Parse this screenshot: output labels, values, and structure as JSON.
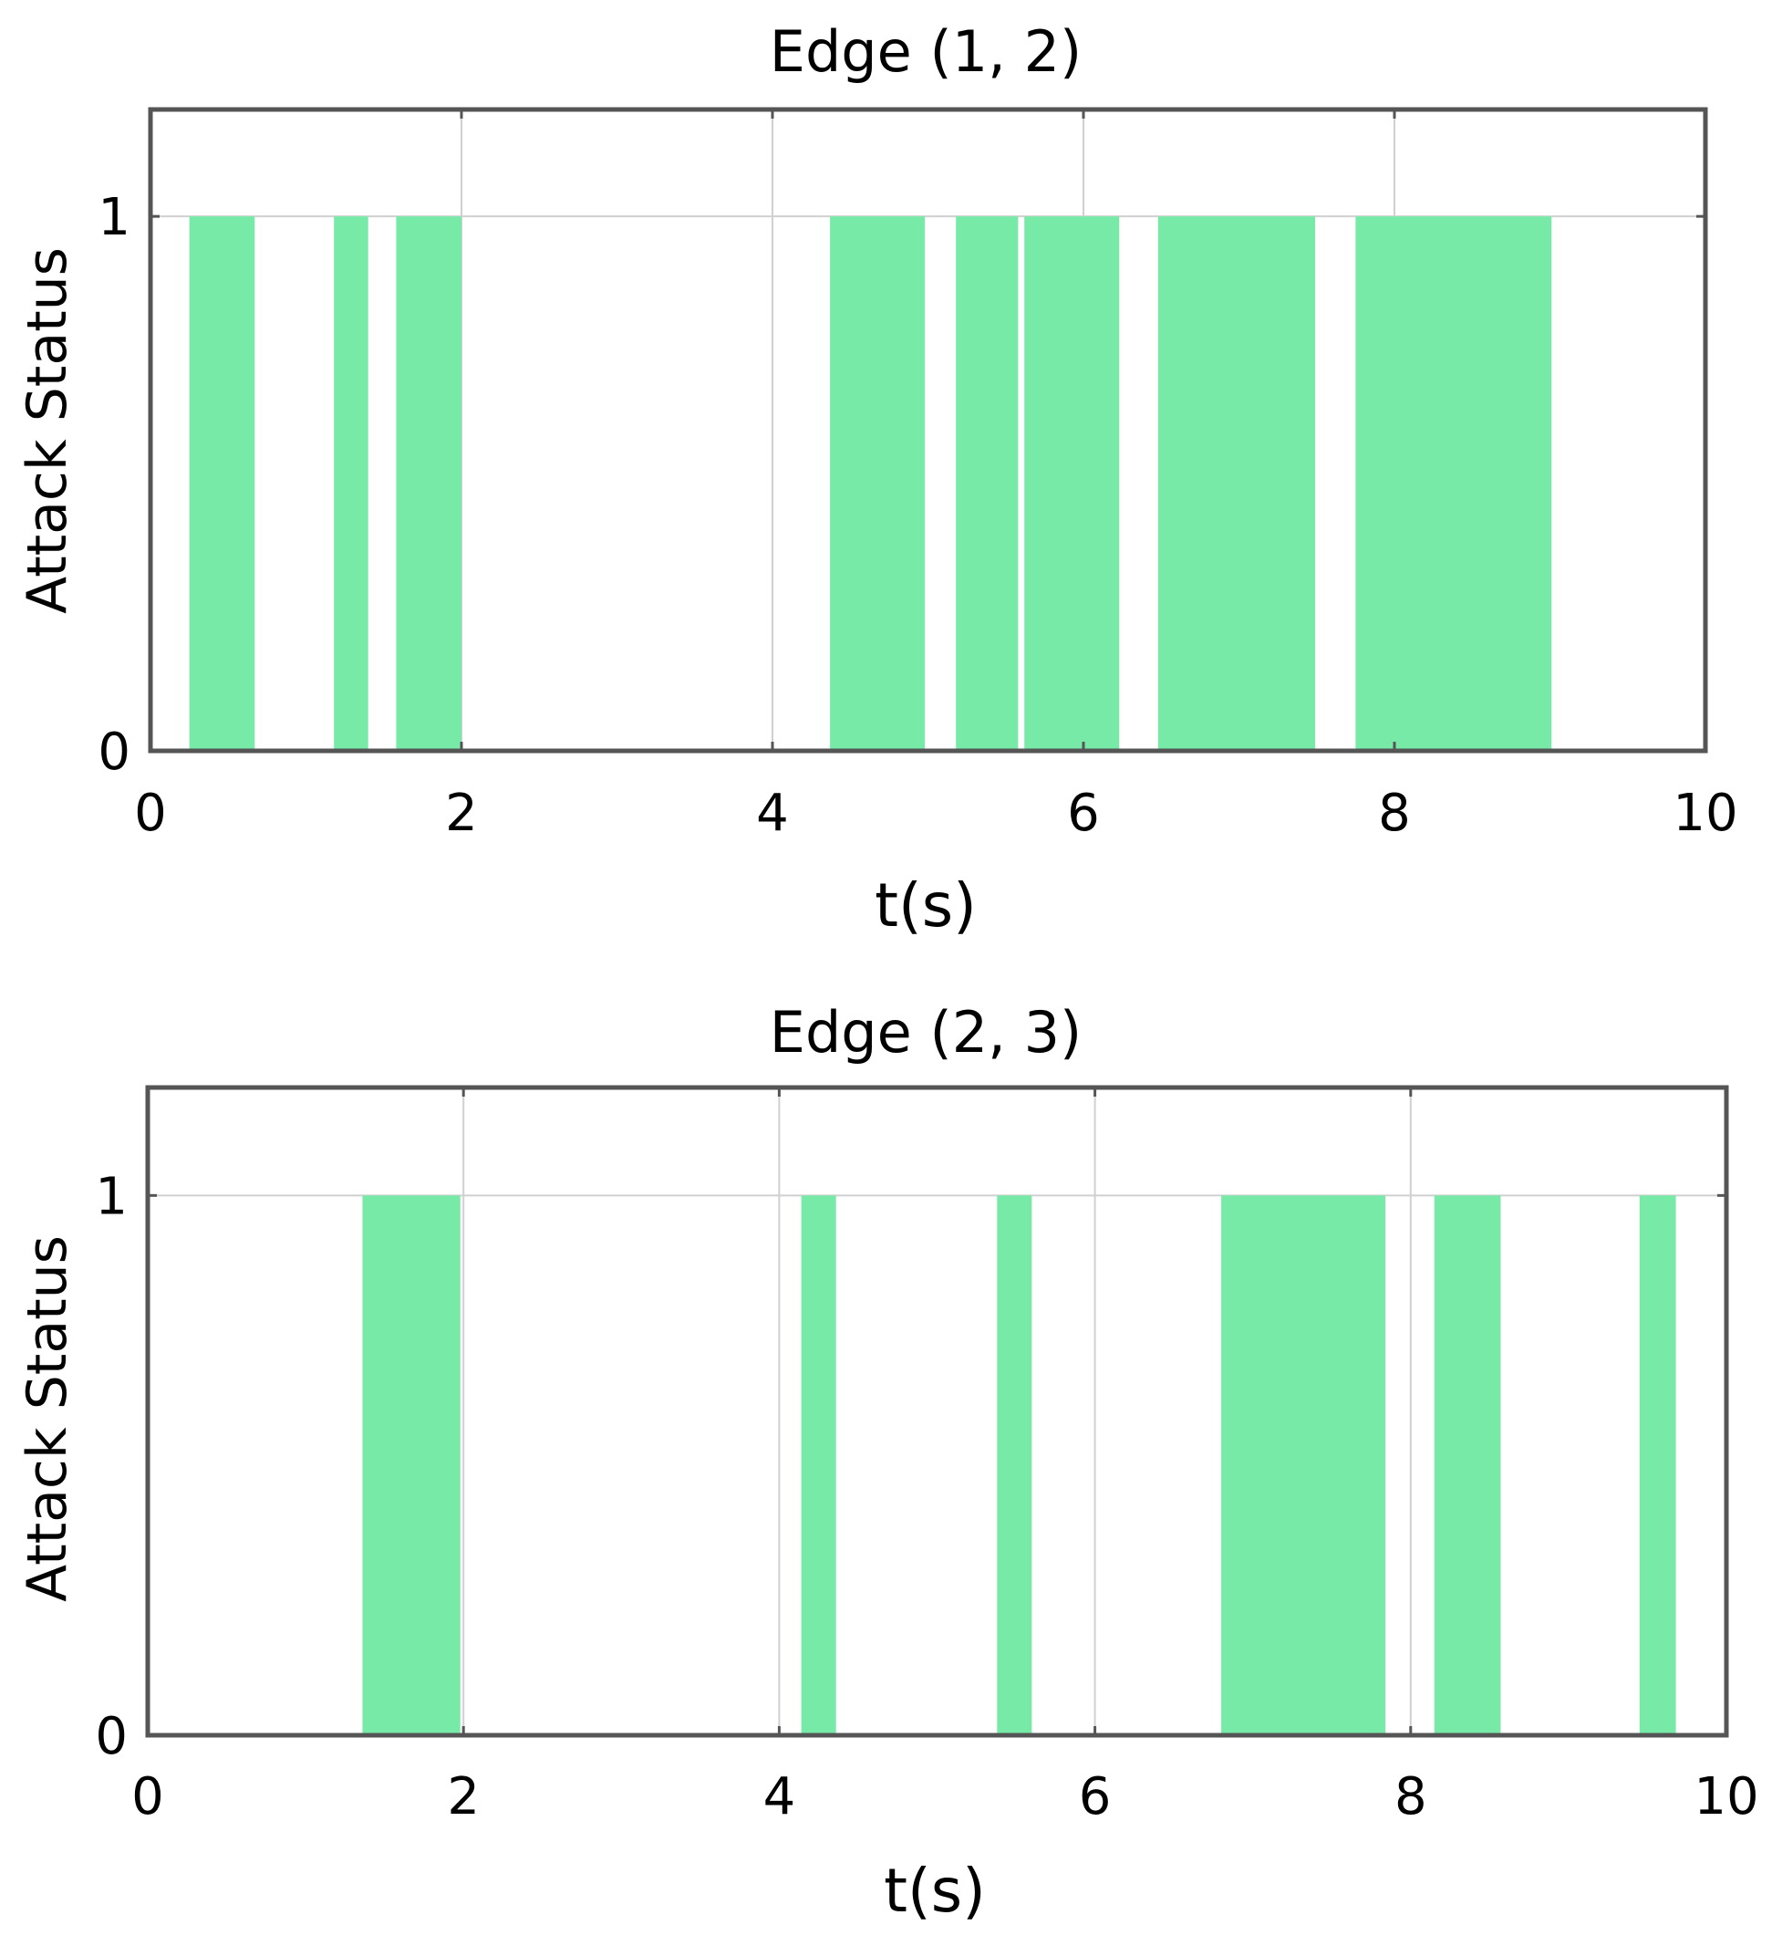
{
  "figure": {
    "bar_color": "#78EAA8",
    "grid_color": "#d0d0d0",
    "frame_color": "#555555"
  },
  "chart_data": [
    {
      "type": "bar",
      "subtype": "step-intervals",
      "title": "Edge (1, 2)",
      "xlabel": "t(s)",
      "ylabel": "Attack Status",
      "xlim": [
        0,
        10
      ],
      "ylim": [
        0,
        1.2
      ],
      "xticks": [
        0,
        2,
        4,
        6,
        8,
        10
      ],
      "yticks": [
        0,
        1
      ],
      "grid": true,
      "intervals": [
        {
          "start": 0.25,
          "end": 0.67,
          "value": 1
        },
        {
          "start": 1.18,
          "end": 1.4,
          "value": 1
        },
        {
          "start": 1.58,
          "end": 2.0,
          "value": 1
        },
        {
          "start": 4.37,
          "end": 4.98,
          "value": 1
        },
        {
          "start": 5.18,
          "end": 5.58,
          "value": 1
        },
        {
          "start": 5.62,
          "end": 6.23,
          "value": 1
        },
        {
          "start": 6.48,
          "end": 7.49,
          "value": 1
        },
        {
          "start": 7.75,
          "end": 9.01,
          "value": 1
        }
      ]
    },
    {
      "type": "bar",
      "subtype": "step-intervals",
      "title": "Edge (2, 3)",
      "xlabel": "t(s)",
      "ylabel": "Attack Status",
      "xlim": [
        0,
        10
      ],
      "ylim": [
        0,
        1.2
      ],
      "xticks": [
        0,
        2,
        4,
        6,
        8,
        10
      ],
      "yticks": [
        0,
        1
      ],
      "grid": true,
      "intervals": [
        {
          "start": 1.36,
          "end": 1.98,
          "value": 1
        },
        {
          "start": 4.14,
          "end": 4.36,
          "value": 1
        },
        {
          "start": 5.38,
          "end": 5.6,
          "value": 1
        },
        {
          "start": 6.8,
          "end": 7.84,
          "value": 1
        },
        {
          "start": 8.15,
          "end": 8.57,
          "value": 1
        },
        {
          "start": 9.45,
          "end": 9.68,
          "value": 1
        }
      ]
    }
  ]
}
